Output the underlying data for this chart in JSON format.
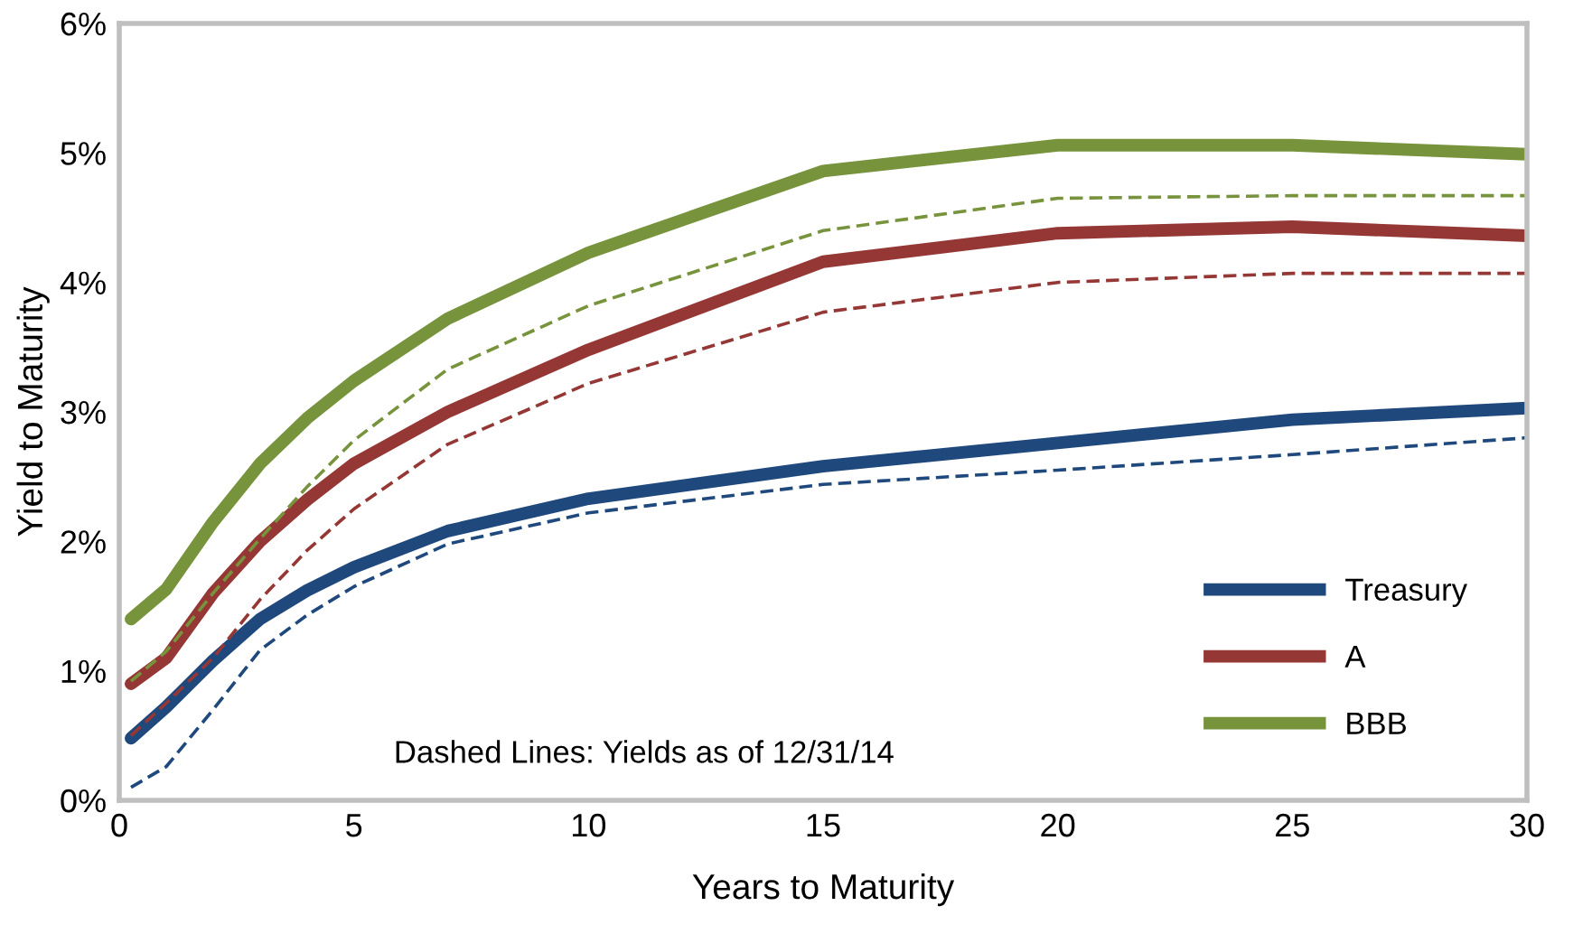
{
  "chart_data": {
    "type": "line",
    "xlabel": "Years to Maturity",
    "ylabel": "Yield to Maturity",
    "x": [
      0.25,
      1,
      2,
      3,
      4,
      5,
      7,
      10,
      15,
      20,
      25,
      30
    ],
    "series": [
      {
        "name": "Treasury",
        "color": "#1f497d",
        "values": [
          0.48,
          0.72,
          1.08,
          1.4,
          1.62,
          1.8,
          2.08,
          2.33,
          2.58,
          2.76,
          2.94,
          3.03
        ]
      },
      {
        "name": "A",
        "color": "#953735",
        "values": [
          0.9,
          1.1,
          1.6,
          2.0,
          2.32,
          2.6,
          3.0,
          3.48,
          4.16,
          4.38,
          4.43,
          4.36
        ]
      },
      {
        "name": "BBB",
        "color": "#77933c",
        "values": [
          1.4,
          1.63,
          2.15,
          2.6,
          2.95,
          3.24,
          3.72,
          4.23,
          4.86,
          5.06,
          5.06,
          4.99
        ]
      },
      {
        "color": "#1f497d",
        "line_style": "dashed",
        "values": [
          0.1,
          0.26,
          0.7,
          1.16,
          1.43,
          1.65,
          1.98,
          2.22,
          2.44,
          2.55,
          2.67,
          2.8
        ]
      },
      {
        "color": "#953735",
        "line_style": "dashed",
        "values": [
          0.5,
          0.75,
          1.1,
          1.55,
          1.93,
          2.25,
          2.75,
          3.22,
          3.77,
          4.0,
          4.07,
          4.07
        ]
      },
      {
        "color": "#77933c",
        "line_style": "dashed",
        "values": [
          0.92,
          1.15,
          1.6,
          2.02,
          2.42,
          2.78,
          3.33,
          3.82,
          4.4,
          4.65,
          4.67,
          4.67
        ]
      }
    ],
    "xlim": [
      0,
      30
    ],
    "xticks": [
      0,
      5,
      10,
      15,
      20,
      25,
      30
    ],
    "ylim": [
      0,
      6
    ],
    "yticks": [
      {
        "value": 0,
        "label": "0%"
      },
      {
        "value": 1,
        "label": "1%"
      },
      {
        "value": 2,
        "label": "2%"
      },
      {
        "value": 3,
        "label": "3%"
      },
      {
        "value": 4,
        "label": "4%"
      },
      {
        "value": 5,
        "label": "5%"
      },
      {
        "value": 6,
        "label": "6%"
      }
    ],
    "annotations": [
      "Dashed Lines: Yields as of 12/31/14"
    ],
    "legend": "bottom right",
    "grid": false,
    "line_style": "solid",
    "marker": "none"
  }
}
